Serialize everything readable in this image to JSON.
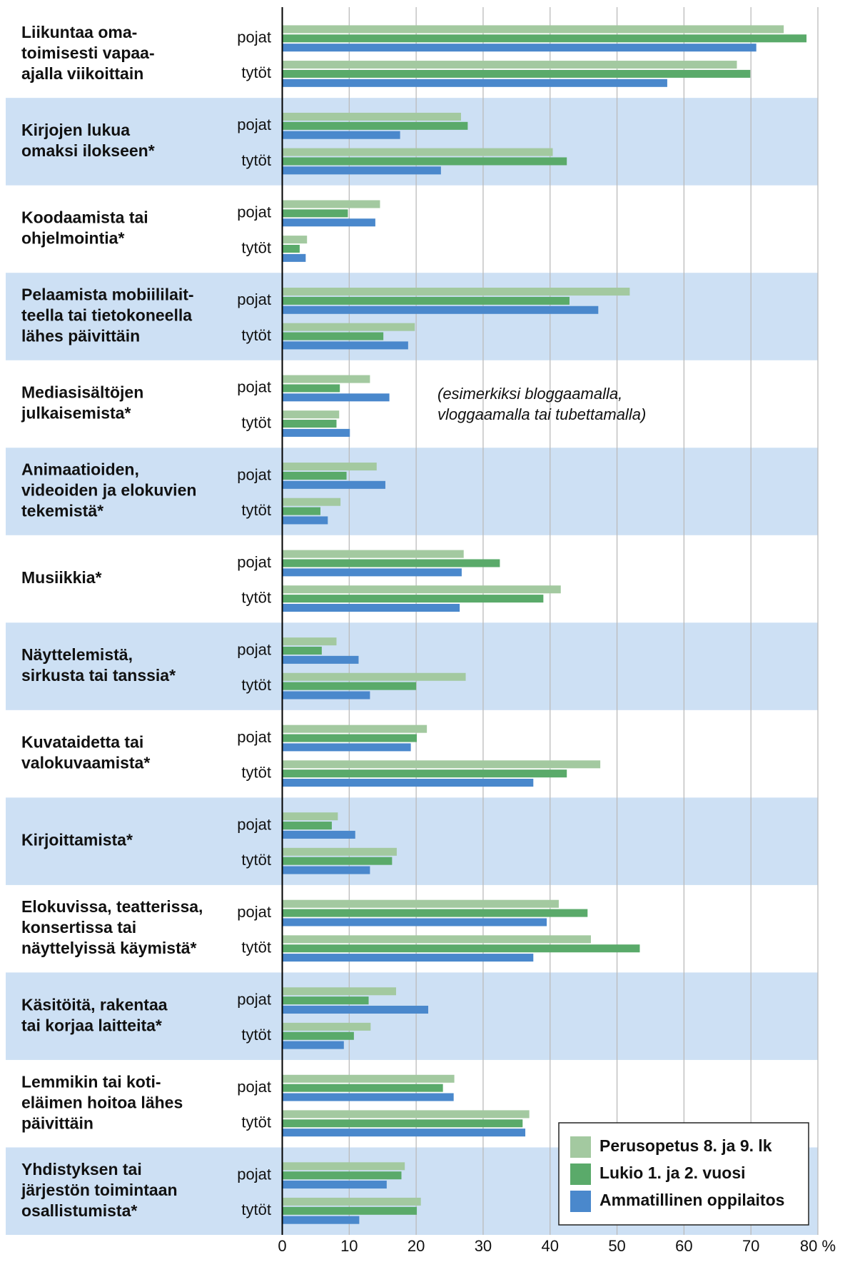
{
  "chart_data": {
    "type": "bar",
    "orientation": "horizontal",
    "categories": [
      [
        "Liikuntaa oma-",
        "toimisesti vapaa-",
        "ajalla viikoittain"
      ],
      [
        "Kirjojen lukua",
        "omaksi ilokseen*"
      ],
      [
        "Koodaamista tai",
        "ohjelmointia*"
      ],
      [
        "Pelaamista mobiililait-",
        "teella tai tietokoneella",
        "lähes päivittäin"
      ],
      [
        "Mediasisältöjen",
        "julkaisemista*"
      ],
      [
        "Animaatioiden,",
        "videoiden ja elokuvien",
        "tekemistä*"
      ],
      [
        "Musiikkia*"
      ],
      [
        "Näyttelemistä,",
        "sirkusta tai tanssia*"
      ],
      [
        "Kuvataidetta tai",
        "valokuvaamista*"
      ],
      [
        "Kirjoittamista*"
      ],
      [
        "Elokuvissa, teatterissa,",
        "konsertissa tai",
        "näyttelyissä käymistä*"
      ],
      [
        "Käsitöitä, rakentaa",
        "tai korjaa laitteita*"
      ],
      [
        "Lemmikin tai koti-",
        "eläimen hoitoa lähes",
        "päivittäin"
      ],
      [
        "Yhdistyksen tai",
        "järjestön toimintaan",
        "osallistumista*"
      ]
    ],
    "subcategories": [
      "pojat",
      "tytöt"
    ],
    "series": [
      {
        "name": "Perusopetus 8. ja 9. lk",
        "color": "#a3c9a0",
        "values": [
          [
            74.9,
            67.9
          ],
          [
            26.7,
            40.4
          ],
          [
            14.6,
            3.7
          ],
          [
            51.9,
            19.8
          ],
          [
            13.1,
            8.5
          ],
          [
            14.1,
            8.7
          ],
          [
            27.1,
            41.6
          ],
          [
            8.1,
            27.4
          ],
          [
            21.6,
            47.5
          ],
          [
            8.3,
            17.1
          ],
          [
            41.3,
            46.1
          ],
          [
            17.0,
            13.2
          ],
          [
            25.7,
            36.9
          ],
          [
            18.3,
            20.7
          ]
        ]
      },
      {
        "name": "Lukio 1. ja 2. vuosi",
        "color": "#5aaa6a",
        "values": [
          [
            78.3,
            69.9
          ],
          [
            27.7,
            42.5
          ],
          [
            9.8,
            2.6
          ],
          [
            42.9,
            15.1
          ],
          [
            8.6,
            8.1
          ],
          [
            9.6,
            5.7
          ],
          [
            32.5,
            39.0
          ],
          [
            5.9,
            20.0
          ],
          [
            20.1,
            42.5
          ],
          [
            7.4,
            16.4
          ],
          [
            45.6,
            53.4
          ],
          [
            12.9,
            10.7
          ],
          [
            24.0,
            35.9
          ],
          [
            17.8,
            20.1
          ]
        ]
      },
      {
        "name": "Ammatillinen oppilaitos",
        "color": "#4a88cc",
        "values": [
          [
            70.8,
            57.5
          ],
          [
            17.6,
            23.7
          ],
          [
            13.9,
            3.5
          ],
          [
            47.2,
            18.8
          ],
          [
            16.0,
            10.1
          ],
          [
            15.4,
            6.8
          ],
          [
            26.8,
            26.5
          ],
          [
            11.4,
            13.1
          ],
          [
            19.2,
            37.5
          ],
          [
            10.9,
            13.1
          ],
          [
            39.5,
            37.5
          ],
          [
            21.8,
            9.2
          ],
          [
            25.6,
            36.3
          ],
          [
            15.6,
            11.5
          ]
        ]
      }
    ],
    "annotation": [
      "(esimerkiksi bloggaamalla,",
      "vloggaamalla tai tubettamalla)"
    ],
    "xlim": [
      0,
      80
    ],
    "xticks": [
      0,
      10,
      20,
      30,
      40,
      50,
      60,
      70,
      {
        "value": 80,
        "label": "80 %"
      }
    ],
    "grid": true,
    "legend": "lower right"
  }
}
